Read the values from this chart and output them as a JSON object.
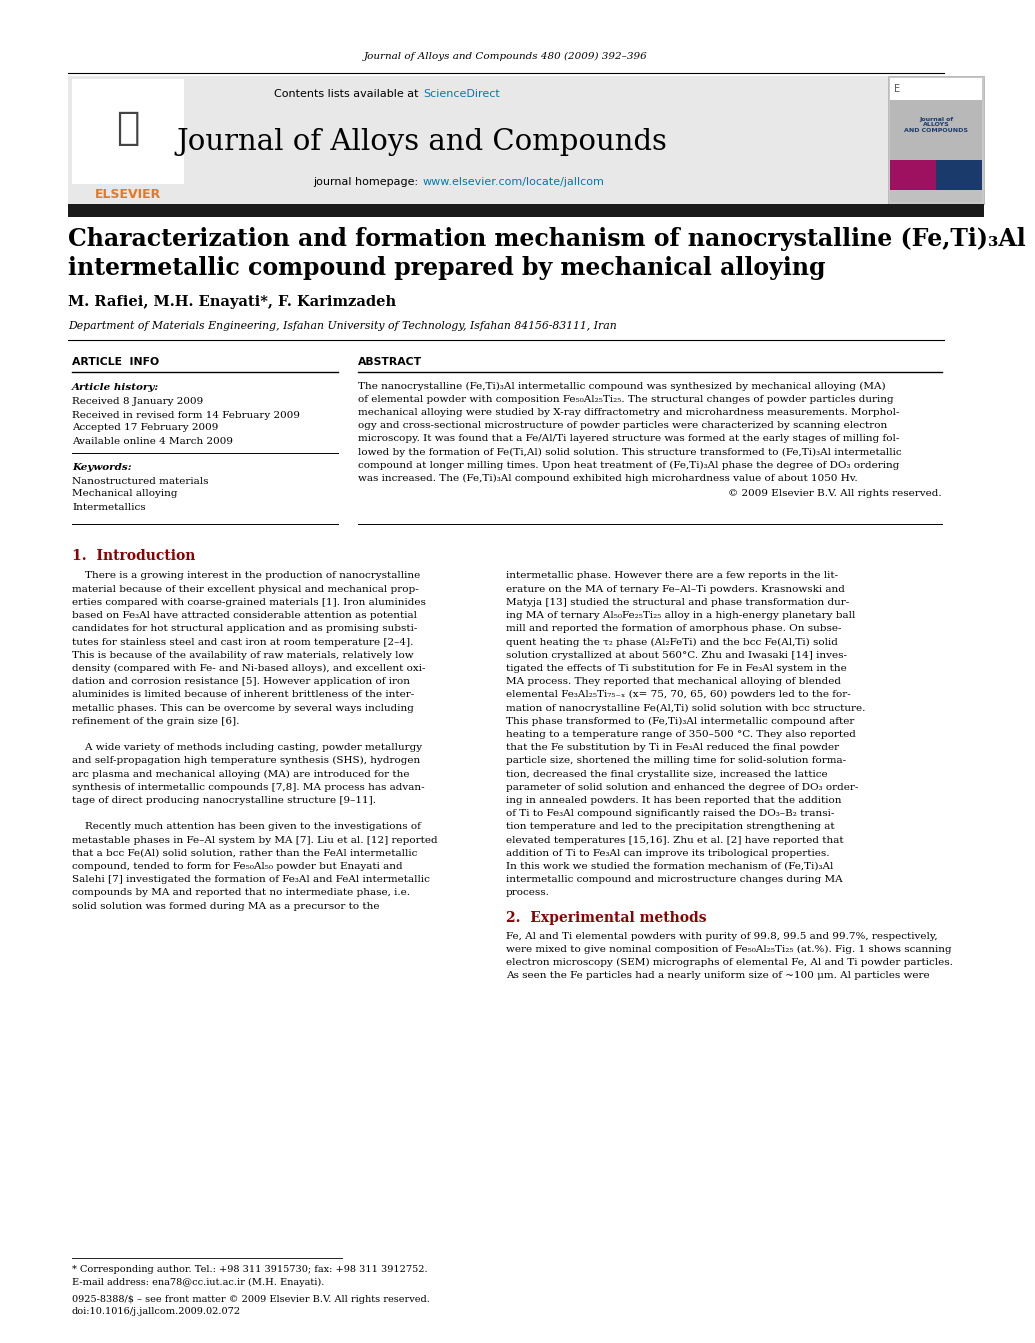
{
  "journal_citation": "Journal of Alloys and Compounds 480 (2009) 392–396",
  "contents_line": "Contents lists available at",
  "sciencedirect": "ScienceDirect",
  "journal_name": "Journal of Alloys and Compounds",
  "journal_homepage_prefix": "journal homepage: ",
  "journal_homepage_url": "www.elsevier.com/locate/jallcom",
  "paper_title_line1": "Characterization and formation mechanism of nanocrystalline (Fe,Ti)₃Al",
  "paper_title_line2": "intermetallic compound prepared by mechanical alloying",
  "authors": "M. Rafiei, M.H. Enayati*, F. Karimzadeh",
  "affiliation": "Department of Materials Engineering, Isfahan University of Technology, Isfahan 84156-83111, Iran",
  "article_info_header": "ARTICLE  INFO",
  "abstract_header": "ABSTRACT",
  "article_history_label": "Article history:",
  "received1": "Received 8 January 2009",
  "received2": "Received in revised form 14 February 2009",
  "accepted": "Accepted 17 February 2009",
  "available": "Available online 4 March 2009",
  "keywords_label": "Keywords:",
  "keyword1": "Nanostructured materials",
  "keyword2": "Mechanical alloying",
  "keyword3": "Intermetallics",
  "copyright": "© 2009 Elsevier B.V. All rights reserved.",
  "intro_header": "1.  Introduction",
  "section2_header": "2.  Experimental methods",
  "footnote_line1": "* Corresponding author. Tel.: +98 311 3915730; fax: +98 311 3912752.",
  "footnote_line2": "E-mail address: ena78@cc.iut.ac.ir (M.H. Enayati).",
  "footnote_line3": "0925-8388/$ – see front matter © 2009 Elsevier B.V. All rights reserved.",
  "footnote_line4": "doi:10.1016/j.jallcom.2009.02.072",
  "header_bg": "#e8e8e8",
  "header_bar_color": "#1a1a1a",
  "elsevier_orange": "#e87722",
  "sciencedirect_color": "#007aad",
  "url_color": "#007aad",
  "intro_color": "#8b0000",
  "abstract_lines": [
    "The nanocrystalline (Fe,Ti)₃Al intermetallic compound was synthesized by mechanical alloying (MA)",
    "of elemental powder with composition Fe₅₀Al₂₅Ti₂₅. The structural changes of powder particles during",
    "mechanical alloying were studied by X-ray diffractometry and microhardness measurements. Morphol-",
    "ogy and cross-sectional microstructure of powder particles were characterized by scanning electron",
    "microscopy. It was found that a Fe/Al/Ti layered structure was formed at the early stages of milling fol-",
    "lowed by the formation of Fe(Ti,Al) solid solution. This structure transformed to (Fe,Ti)₃Al intermetallic",
    "compound at longer milling times. Upon heat treatment of (Fe,Ti)₃Al phase the degree of DO₃ ordering",
    "was increased. The (Fe,Ti)₃Al compound exhibited high microhardness value of about 1050 Hv."
  ],
  "intro_col1_lines": [
    "    There is a growing interest in the production of nanocrystalline",
    "material because of their excellent physical and mechanical prop-",
    "erties compared with coarse-grained materials [1]. Iron aluminides",
    "based on Fe₃Al have attracted considerable attention as potential",
    "candidates for hot structural application and as promising substi-",
    "tutes for stainless steel and cast iron at room temperature [2–4].",
    "This is because of the availability of raw materials, relatively low",
    "density (compared with Fe- and Ni-based alloys), and excellent oxi-",
    "dation and corrosion resistance [5]. However application of iron",
    "aluminides is limited because of inherent brittleness of the inter-",
    "metallic phases. This can be overcome by several ways including",
    "refinement of the grain size [6].",
    "",
    "    A wide variety of methods including casting, powder metallurgy",
    "and self-propagation high temperature synthesis (SHS), hydrogen",
    "arc plasma and mechanical alloying (MA) are introduced for the",
    "synthesis of intermetallic compounds [7,8]. MA process has advan-",
    "tage of direct producing nanocrystalline structure [9–11].",
    "",
    "    Recently much attention has been given to the investigations of",
    "metastable phases in Fe–Al system by MA [7]. Liu et al. [12] reported",
    "that a bcc Fe(Al) solid solution, rather than the FeAl intermetallic",
    "compound, tended to form for Fe₅₀Al₅₀ powder but Enayati and",
    "Salehi [7] investigated the formation of Fe₃Al and FeAl intermetallic",
    "compounds by MA and reported that no intermediate phase, i.e.",
    "solid solution was formed during MA as a precursor to the"
  ],
  "intro_col2_lines": [
    "intermetallic phase. However there are a few reports in the lit-",
    "erature on the MA of ternary Fe–Al–Ti powders. Krasnowski and",
    "Matyja [13] studied the structural and phase transformation dur-",
    "ing MA of ternary Al₅₀Fe₂₅Ti₂₅ alloy in a high-energy planetary ball",
    "mill and reported the formation of amorphous phase. On subse-",
    "quent heating the τ₂ phase (Al₂FeTi) and the bcc Fe(Al,Ti) solid",
    "solution crystallized at about 560°C. Zhu and Iwasaki [14] inves-",
    "tigated the effects of Ti substitution for Fe in Fe₃Al system in the",
    "MA process. They reported that mechanical alloying of blended",
    "elemental Fe₃Al₂₅Ti₇₅₋ₓ (x= 75, 70, 65, 60) powders led to the for-",
    "mation of nanocrystalline Fe(Al,Ti) solid solution with bcc structure.",
    "This phase transformed to (Fe,Ti)₃Al intermetallic compound after",
    "heating to a temperature range of 350–500 °C. They also reported",
    "that the Fe substitution by Ti in Fe₃Al reduced the final powder",
    "particle size, shortened the milling time for solid-solution forma-",
    "tion, decreased the final crystallite size, increased the lattice",
    "parameter of solid solution and enhanced the degree of DO₃ order-",
    "ing in annealed powders. It has been reported that the addition",
    "of Ti to Fe₃Al compound significantly raised the DO₃–B₂ transi-",
    "tion temperature and led to the precipitation strengthening at",
    "elevated temperatures [15,16]. Zhu et al. [2] have reported that",
    "addition of Ti to Fe₃Al can improve its tribological properties.",
    "In this work we studied the formation mechanism of (Fe,Ti)₃Al",
    "intermetallic compound and microstructure changes during MA",
    "process."
  ],
  "sec2_lines": [
    "Fe, Al and Ti elemental powders with purity of 99.8, 99.5 and 99.7%, respectively,",
    "were mixed to give nominal composition of Fe₅₀Al₂₅Ti₂₅ (at.%). Fig. 1 shows scanning",
    "electron microscopy (SEM) micrographs of elemental Fe, Al and Ti powder particles.",
    "As seen the Fe particles had a nearly uniform size of ~100 μm. Al particles were"
  ]
}
